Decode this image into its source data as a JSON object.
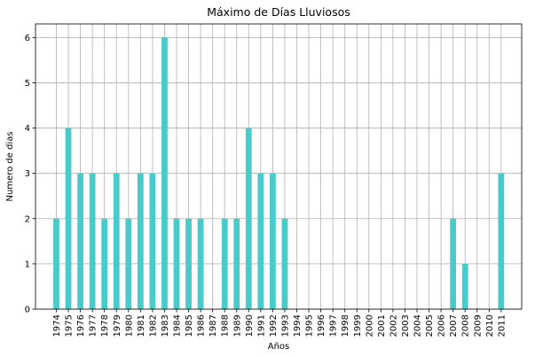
{
  "chart_data": {
    "type": "bar",
    "title": "Máximo de Días Lluviosos",
    "xlabel": "Años",
    "ylabel": "Numero de dias",
    "ylim": [
      0,
      6.3
    ],
    "yticks": [
      0,
      1,
      2,
      3,
      4,
      5,
      6
    ],
    "grid": true,
    "bar_color": "#48cccb",
    "grid_color": "#b0b0b0",
    "categories": [
      "1974",
      "1975",
      "1976",
      "1977",
      "1978",
      "1979",
      "1980",
      "1981",
      "1982",
      "1983",
      "1984",
      "1985",
      "1986",
      "1987",
      "1988",
      "1989",
      "1990",
      "1991",
      "1992",
      "1993",
      "1994",
      "1995",
      "1996",
      "1997",
      "1998",
      "1999",
      "2000",
      "2001",
      "2002",
      "2003",
      "2004",
      "2005",
      "2006",
      "2007",
      "2008",
      "2009",
      "2010",
      "2011"
    ],
    "values": [
      2,
      4,
      3,
      3,
      2,
      3,
      2,
      3,
      3,
      6,
      2,
      2,
      2,
      0,
      2,
      2,
      4,
      3,
      3,
      2,
      0,
      0,
      0,
      0,
      0,
      0,
      0,
      0,
      0,
      0,
      0,
      0,
      0,
      2,
      1,
      0,
      0,
      3
    ]
  }
}
